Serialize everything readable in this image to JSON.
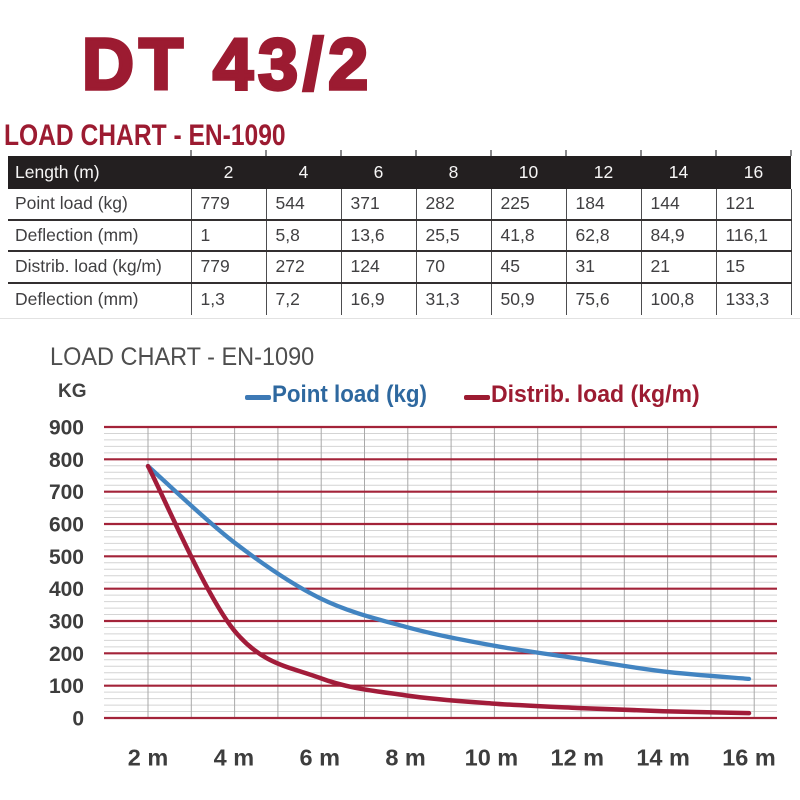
{
  "page": {
    "title": "DT 43/2",
    "section_heading": "LOAD CHART - EN-1090",
    "brand_color": "#9C1B31"
  },
  "table": {
    "header": [
      "Length (m)",
      "2",
      "4",
      "6",
      "8",
      "10",
      "12",
      "14",
      "16"
    ],
    "rows": [
      [
        "Point load (kg)",
        "779",
        "544",
        "371",
        "282",
        "225",
        "184",
        "144",
        "121"
      ],
      [
        "Deflection (mm)",
        "1",
        "5,8",
        "13,6",
        "25,5",
        "41,8",
        "62,8",
        "84,9",
        "116,1"
      ],
      [
        "Distrib. load (kg/m)",
        "779",
        "272",
        "124",
        "70",
        "45",
        "31",
        "21",
        "15"
      ],
      [
        "Deflection (mm)",
        "1,3",
        "7,2",
        "16,9",
        "31,3",
        "50,9",
        "75,6",
        "100,8",
        "133,3"
      ]
    ],
    "header_bg": "#231F20"
  },
  "chart": {
    "title": "LOAD CHART - EN-1090",
    "y_unit": "KG",
    "legend": [
      {
        "label": "Point load (kg)",
        "color": "#2E689F",
        "dash_color": "#3D79B5"
      },
      {
        "label": "Distrib. load (kg/m)",
        "color": "#9C1B31",
        "dash_color": "#9C1B31"
      }
    ]
  },
  "chart_data": {
    "type": "line",
    "x": [
      2,
      4,
      6,
      8,
      10,
      12,
      14,
      16
    ],
    "x_tick_labels": [
      "2 m",
      "4 m",
      "6 m",
      "8 m",
      "10 m",
      "12 m",
      "14 m",
      "16 m"
    ],
    "xlabel": "",
    "ylabel": "KG",
    "y_ticks": [
      0,
      100,
      200,
      300,
      400,
      500,
      600,
      700,
      800,
      900
    ],
    "ylim": [
      0,
      900
    ],
    "y_major_step": 100,
    "y_minor_step": 20,
    "x_minor_step": 1,
    "grid": true,
    "legend_position": "top",
    "smooth": true,
    "series": [
      {
        "name": "Point load (kg)",
        "color": "#4284C1",
        "values": [
          779,
          544,
          371,
          282,
          225,
          184,
          144,
          121
        ]
      },
      {
        "name": "Distrib. load (kg/m)",
        "color": "#A21C3A",
        "values": [
          779,
          272,
          124,
          70,
          45,
          31,
          21,
          15
        ]
      }
    ],
    "major_grid_color": "#A32339",
    "minor_grid_color": "#D4D4D4",
    "vertical_grid_color": "#A9A9A9",
    "tick_label_color": "#3D3D3D"
  }
}
